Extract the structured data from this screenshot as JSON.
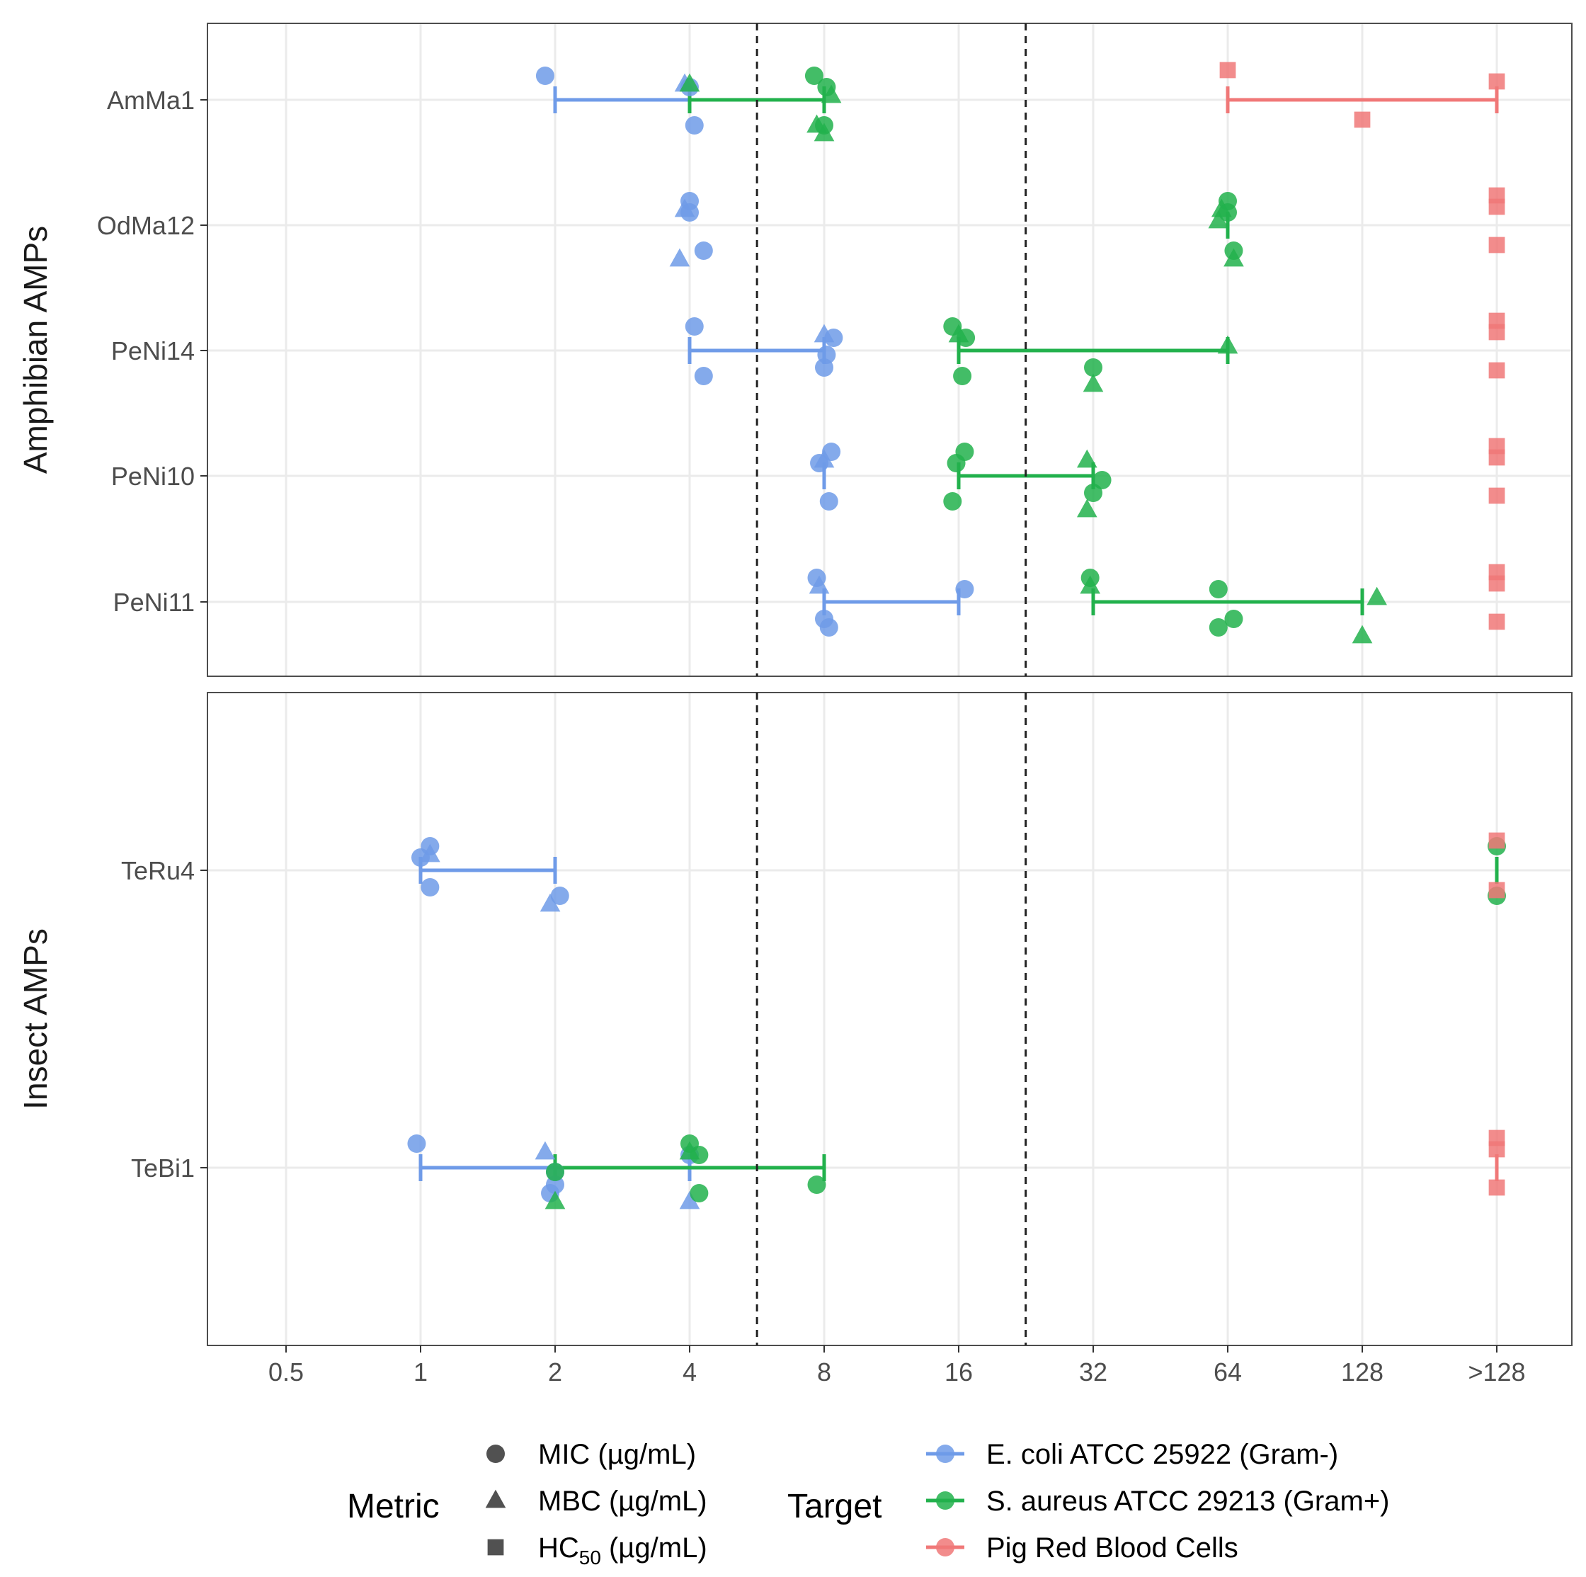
{
  "chart_data": {
    "type": "scatter",
    "x_scale": "log2",
    "x_ticks": [
      "0.5",
      "1",
      "2",
      "4",
      "8",
      "16",
      "32",
      "64",
      "128",
      ">128"
    ],
    "x_tick_values": [
      0.5,
      1,
      2,
      4,
      8,
      16,
      32,
      64,
      128,
      256
    ],
    "x_overflow_note": "values above 128 plotted at >128",
    "reference_lines": [
      5.66,
      22.6
    ],
    "reference_line_style": "dashed",
    "grid": true,
    "colors": {
      "E. coli ATCC 25922 (Gram-)": "#6f9be8",
      "S. aureus ATCC 29213 (Gram+)": "#22b14c",
      "Pig Red Blood Cells": "#f07878"
    },
    "panels": [
      {
        "title": "Amphibian AMPs",
        "peptides": [
          "AmMa1",
          "OdMa12",
          "PeNi14",
          "PeNi10",
          "PeNi11"
        ],
        "points": [
          {
            "peptide": "AmMa1",
            "target": "E. coli ATCC 25922 (Gram-)",
            "metric": "MIC",
            "values": [
              1.9,
              4.1,
              4.0
            ]
          },
          {
            "peptide": "AmMa1",
            "target": "E. coli ATCC 25922 (Gram-)",
            "metric": "MBC",
            "values": [
              3.9
            ]
          },
          {
            "peptide": "AmMa1",
            "target": "S. aureus ATCC 29213 (Gram+)",
            "metric": "MIC",
            "values": [
              7.6,
              8.0,
              8.1
            ]
          },
          {
            "peptide": "AmMa1",
            "target": "S. aureus ATCC 29213 (Gram+)",
            "metric": "MBC",
            "values": [
              4.0,
              8.0,
              8.3,
              7.7
            ]
          },
          {
            "peptide": "AmMa1",
            "target": "Pig Red Blood Cells",
            "metric": "HC50",
            "values": [
              64,
              128,
              256
            ]
          },
          {
            "peptide": "OdMa12",
            "target": "E. coli ATCC 25922 (Gram-)",
            "metric": "MIC",
            "values": [
              4.0,
              4.3,
              4.0
            ]
          },
          {
            "peptide": "OdMa12",
            "target": "E. coli ATCC 25922 (Gram-)",
            "metric": "MBC",
            "values": [
              3.9,
              3.8
            ]
          },
          {
            "peptide": "OdMa12",
            "target": "S. aureus ATCC 29213 (Gram+)",
            "metric": "MIC",
            "values": [
              64,
              66,
              64
            ]
          },
          {
            "peptide": "OdMa12",
            "target": "S. aureus ATCC 29213 (Gram+)",
            "metric": "MBC",
            "values": [
              62,
              66,
              61
            ]
          },
          {
            "peptide": "OdMa12",
            "target": "Pig Red Blood Cells",
            "metric": "HC50",
            "values": [
              256,
              256,
              256
            ]
          },
          {
            "peptide": "PeNi14",
            "target": "E. coli ATCC 25922 (Gram-)",
            "metric": "MIC",
            "values": [
              4.1,
              4.3,
              8.4,
              8.0,
              8.1
            ]
          },
          {
            "peptide": "PeNi14",
            "target": "E. coli ATCC 25922 (Gram-)",
            "metric": "MBC",
            "values": [
              8.0
            ]
          },
          {
            "peptide": "PeNi14",
            "target": "S. aureus ATCC 29213 (Gram+)",
            "metric": "MIC",
            "values": [
              15.5,
              16.3,
              16.6,
              32
            ]
          },
          {
            "peptide": "PeNi14",
            "target": "S. aureus ATCC 29213 (Gram+)",
            "metric": "MBC",
            "values": [
              16,
              32,
              64
            ]
          },
          {
            "peptide": "PeNi14",
            "target": "Pig Red Blood Cells",
            "metric": "HC50",
            "values": [
              256,
              256,
              256
            ]
          },
          {
            "peptide": "PeNi10",
            "target": "E. coli ATCC 25922 (Gram-)",
            "metric": "MIC",
            "values": [
              8.3,
              8.2,
              7.8
            ]
          },
          {
            "peptide": "PeNi10",
            "target": "E. coli ATCC 25922 (Gram-)",
            "metric": "MBC",
            "values": [
              8.0
            ]
          },
          {
            "peptide": "PeNi10",
            "target": "S. aureus ATCC 29213 (Gram+)",
            "metric": "MIC",
            "values": [
              16.5,
              15.5,
              15.8,
              32,
              33.5
            ]
          },
          {
            "peptide": "PeNi10",
            "target": "S. aureus ATCC 29213 (Gram+)",
            "metric": "MBC",
            "values": [
              31,
              31
            ]
          },
          {
            "peptide": "PeNi10",
            "target": "Pig Red Blood Cells",
            "metric": "HC50",
            "values": [
              256,
              256,
              256
            ]
          },
          {
            "peptide": "PeNi11",
            "target": "E. coli ATCC 25922 (Gram-)",
            "metric": "MIC",
            "values": [
              7.7,
              8.2,
              16.5,
              8.0
            ]
          },
          {
            "peptide": "PeNi11",
            "target": "E. coli ATCC 25922 (Gram-)",
            "metric": "MBC",
            "values": [
              7.8
            ]
          },
          {
            "peptide": "PeNi11",
            "target": "S. aureus ATCC 29213 (Gram+)",
            "metric": "MIC",
            "values": [
              31.5,
              61,
              61,
              66
            ]
          },
          {
            "peptide": "PeNi11",
            "target": "S. aureus ATCC 29213 (Gram+)",
            "metric": "MBC",
            "values": [
              31.5,
              128,
              138
            ]
          },
          {
            "peptide": "PeNi11",
            "target": "Pig Red Blood Cells",
            "metric": "HC50",
            "values": [
              256,
              256,
              256
            ]
          }
        ],
        "ranges": [
          {
            "peptide": "AmMa1",
            "target": "E. coli ATCC 25922 (Gram-)",
            "from": 2,
            "to": 4
          },
          {
            "peptide": "AmMa1",
            "target": "S. aureus ATCC 29213 (Gram+)",
            "from": 4,
            "to": 8
          },
          {
            "peptide": "AmMa1",
            "target": "Pig Red Blood Cells",
            "from": 64,
            "to": 256
          },
          {
            "peptide": "OdMa12",
            "target": "S. aureus ATCC 29213 (Gram+)",
            "from": 64,
            "to": 64
          },
          {
            "peptide": "PeNi14",
            "target": "E. coli ATCC 25922 (Gram-)",
            "from": 4,
            "to": 8
          },
          {
            "peptide": "PeNi14",
            "target": "S. aureus ATCC 29213 (Gram+)",
            "from": 16,
            "to": 64
          },
          {
            "peptide": "PeNi10",
            "target": "E. coli ATCC 25922 (Gram-)",
            "from": 8,
            "to": 8
          },
          {
            "peptide": "PeNi10",
            "target": "S. aureus ATCC 29213 (Gram+)",
            "from": 16,
            "to": 32
          },
          {
            "peptide": "PeNi11",
            "target": "E. coli ATCC 25922 (Gram-)",
            "from": 8,
            "to": 16
          },
          {
            "peptide": "PeNi11",
            "target": "S. aureus ATCC 29213 (Gram+)",
            "from": 32,
            "to": 128
          }
        ]
      },
      {
        "title": "Insect AMPs",
        "peptides": [
          "TeRu4",
          "TeBi1"
        ],
        "points": [
          {
            "peptide": "TeRu4",
            "target": "E. coli ATCC 25922 (Gram-)",
            "metric": "MIC",
            "values": [
              1.05,
              2.05,
              1.0,
              1.05
            ]
          },
          {
            "peptide": "TeRu4",
            "target": "E. coli ATCC 25922 (Gram-)",
            "metric": "MBC",
            "values": [
              1.05,
              1.95
            ]
          },
          {
            "peptide": "TeRu4",
            "target": "S. aureus ATCC 29213 (Gram+)",
            "metric": "MIC",
            "values": [
              256,
              256
            ]
          },
          {
            "peptide": "TeRu4",
            "target": "Pig Red Blood Cells",
            "metric": "HC50",
            "values": [
              256,
              256
            ]
          },
          {
            "peptide": "TeBi1",
            "target": "E. coli ATCC 25922 (Gram-)",
            "metric": "MIC",
            "values": [
              0.98,
              1.95,
              4.0,
              2.0,
              2.0
            ]
          },
          {
            "peptide": "TeBi1",
            "target": "E. coli ATCC 25922 (Gram-)",
            "metric": "MBC",
            "values": [
              1.9,
              4.0
            ]
          },
          {
            "peptide": "TeBi1",
            "target": "S. aureus ATCC 29213 (Gram+)",
            "metric": "MIC",
            "values": [
              4.0,
              4.2,
              4.2,
              7.7,
              2.0
            ]
          },
          {
            "peptide": "TeBi1",
            "target": "S. aureus ATCC 29213 (Gram+)",
            "metric": "MBC",
            "values": [
              4.0,
              2.0
            ]
          },
          {
            "peptide": "TeBi1",
            "target": "Pig Red Blood Cells",
            "metric": "HC50",
            "values": [
              256,
              256,
              256
            ]
          }
        ],
        "ranges": [
          {
            "peptide": "TeRu4",
            "target": "E. coli ATCC 25922 (Gram-)",
            "from": 1,
            "to": 2
          },
          {
            "peptide": "TeRu4",
            "target": "S. aureus ATCC 29213 (Gram+)",
            "from": 256,
            "to": 256
          },
          {
            "peptide": "TeBi1",
            "target": "E. coli ATCC 25922 (Gram-)",
            "from": 1,
            "to": 4
          },
          {
            "peptide": "TeBi1",
            "target": "S. aureus ATCC 29213 (Gram+)",
            "from": 2,
            "to": 8
          },
          {
            "peptide": "TeBi1",
            "target": "Pig Red Blood Cells",
            "from": 256,
            "to": 256
          }
        ]
      }
    ],
    "legend": {
      "metric_title": "Metric",
      "metric_items": [
        {
          "key": "MIC",
          "label": "MIC (µg/mL)",
          "shape": "circle"
        },
        {
          "key": "MBC",
          "label": "MBC (µg/mL)",
          "shape": "triangle"
        },
        {
          "key": "HC50",
          "label": "HC",
          "label_sub": "50",
          "label_suffix": " (µg/mL)",
          "shape": "square"
        }
      ],
      "target_title": "Target",
      "target_items": [
        {
          "label": "E. coli ATCC 25922 (Gram-)",
          "color": "#6f9be8"
        },
        {
          "label": "S. aureus ATCC 29213 (Gram+)",
          "color": "#22b14c"
        },
        {
          "label": "Pig Red Blood Cells",
          "color": "#f07878"
        }
      ],
      "placement": "bottom"
    }
  }
}
